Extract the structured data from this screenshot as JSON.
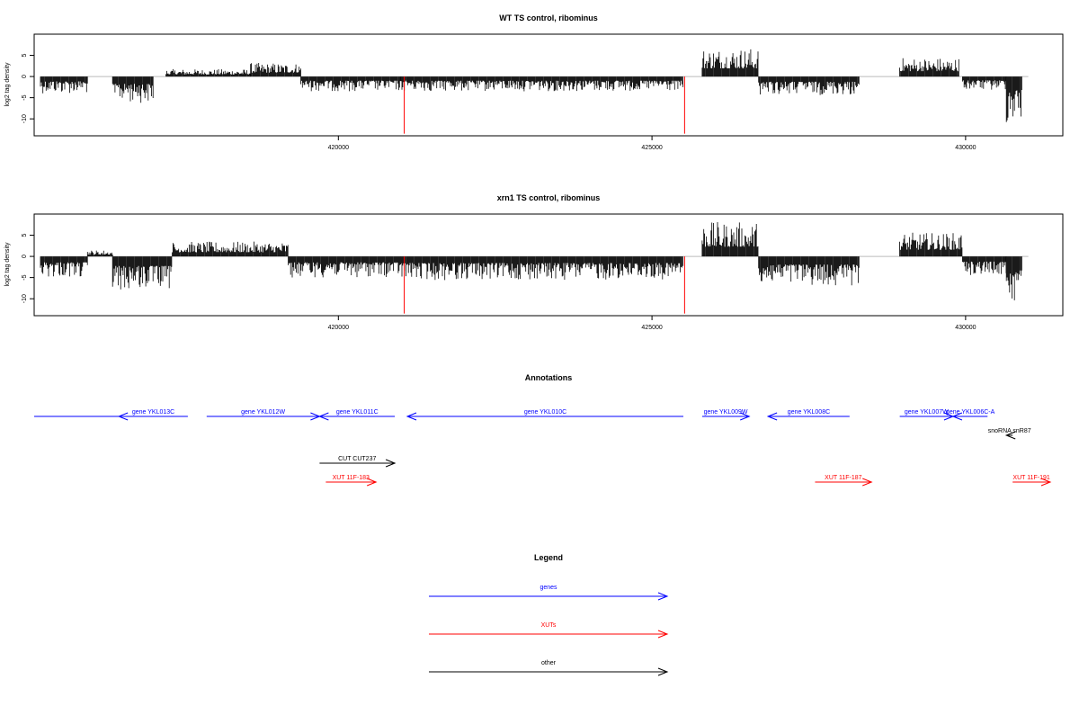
{
  "colors": {
    "genes": "#0000ff",
    "xuts": "#ff0000",
    "other": "#000000",
    "signal": "#000000",
    "marker": "#ff0000",
    "baseline": "#bbbbbb"
  },
  "chart_data": [
    {
      "type": "bar",
      "title": "WT TS control, ribominus",
      "ylabel": "log2 tag density",
      "xlim": [
        415150,
        431550
      ],
      "ylim": [
        -14,
        10
      ],
      "x_ticks": [
        420000,
        425000,
        430000
      ],
      "x_tick_labels": [
        "420000",
        "425000",
        "430000"
      ],
      "y_ticks": [
        -10,
        -5,
        0,
        5
      ],
      "y_tick_labels": [
        "-10",
        "-5",
        "0",
        "5"
      ],
      "marker_positions": [
        421050,
        425520
      ],
      "marker_depth": -13.5,
      "segments": [
        {
          "start": 415250,
          "end": 416000,
          "strand": "-",
          "level": 3.2
        },
        {
          "start": 416400,
          "end": 417050,
          "strand": "-",
          "level": 5.0
        },
        {
          "start": 417250,
          "end": 418600,
          "strand": "+",
          "level": 1.4
        },
        {
          "start": 418600,
          "end": 419400,
          "strand": "+",
          "level": 2.6
        },
        {
          "start": 419400,
          "end": 421000,
          "strand": "-",
          "level": 2.8
        },
        {
          "start": 421000,
          "end": 425500,
          "strand": "-",
          "level": 2.8
        },
        {
          "start": 425800,
          "end": 426700,
          "strand": "+",
          "level": 5.5
        },
        {
          "start": 426700,
          "end": 428300,
          "strand": "-",
          "level": 3.5
        },
        {
          "start": 428950,
          "end": 429900,
          "strand": "+",
          "level": 3.6
        },
        {
          "start": 429950,
          "end": 430650,
          "strand": "-",
          "level": 2.6
        },
        {
          "start": 430650,
          "end": 430900,
          "strand": "-",
          "level": 9.0
        }
      ]
    },
    {
      "type": "bar",
      "title": "xrn1 TS control, ribominus",
      "ylabel": "log2 tag density",
      "xlim": [
        415150,
        431550
      ],
      "ylim": [
        -14,
        10
      ],
      "x_ticks": [
        420000,
        425000,
        430000
      ],
      "x_tick_labels": [
        "420000",
        "425000",
        "430000"
      ],
      "y_ticks": [
        -10,
        -5,
        0,
        5
      ],
      "y_tick_labels": [
        "-10",
        "-5",
        "0",
        "5"
      ],
      "marker_positions": [
        421050,
        425520
      ],
      "marker_depth": -13.5,
      "segments": [
        {
          "start": 415250,
          "end": 416000,
          "strand": "-",
          "level": 4.0
        },
        {
          "start": 416000,
          "end": 416400,
          "strand": "+",
          "level": 1.2
        },
        {
          "start": 416400,
          "end": 417350,
          "strand": "-",
          "level": 6.5
        },
        {
          "start": 417350,
          "end": 419200,
          "strand": "+",
          "level": 2.8
        },
        {
          "start": 419200,
          "end": 421000,
          "strand": "-",
          "level": 4.0
        },
        {
          "start": 421000,
          "end": 425500,
          "strand": "-",
          "level": 4.5
        },
        {
          "start": 425800,
          "end": 426700,
          "strand": "+",
          "level": 6.5
        },
        {
          "start": 426700,
          "end": 428300,
          "strand": "-",
          "level": 5.5
        },
        {
          "start": 428950,
          "end": 429950,
          "strand": "+",
          "level": 4.5
        },
        {
          "start": 429950,
          "end": 430650,
          "strand": "-",
          "level": 3.5
        },
        {
          "start": 430650,
          "end": 430900,
          "strand": "-",
          "level": 9.5
        }
      ]
    }
  ],
  "annotations": {
    "title": "Annotations",
    "features": [
      {
        "label": "",
        "type": "gene",
        "start": 415150,
        "end": 416500,
        "dir": "none",
        "row": 0
      },
      {
        "label": "gene YKL013C",
        "type": "gene",
        "start": 416500,
        "end": 417600,
        "dir": "left",
        "row": 0
      },
      {
        "label": "gene YKL012W",
        "type": "gene",
        "start": 417900,
        "end": 419700,
        "dir": "right",
        "row": 0
      },
      {
        "label": "gene YKL011C",
        "type": "gene",
        "start": 419700,
        "end": 420900,
        "dir": "left",
        "row": 0
      },
      {
        "label": "gene YKL010C",
        "type": "gene",
        "start": 421100,
        "end": 425500,
        "dir": "left",
        "row": 0
      },
      {
        "label": "gene YKL009W",
        "type": "gene",
        "start": 425800,
        "end": 426550,
        "dir": "right",
        "row": 0
      },
      {
        "label": "gene YKL008C",
        "type": "gene",
        "start": 426850,
        "end": 428150,
        "dir": "left",
        "row": 0
      },
      {
        "label": "gene YKL007W",
        "type": "gene",
        "start": 428950,
        "end": 429800,
        "dir": "right",
        "row": 0
      },
      {
        "label": "gene YKL006C-A",
        "type": "gene",
        "start": 429800,
        "end": 430350,
        "dir": "left",
        "row": 0
      },
      {
        "label": "snoRNA snR87",
        "type": "other",
        "start": 430650,
        "end": 430750,
        "dir": "left",
        "row": 1
      },
      {
        "label": "CUT CUT237",
        "type": "other",
        "start": 419700,
        "end": 420900,
        "dir": "right",
        "row": 2
      },
      {
        "label": "XUT 11F-183",
        "type": "xut",
        "start": 419800,
        "end": 420600,
        "dir": "right",
        "row": 3
      },
      {
        "label": "XUT 11F-187",
        "type": "xut",
        "start": 427600,
        "end": 428500,
        "dir": "right",
        "row": 3
      },
      {
        "label": "XUT 11F-191",
        "type": "xut",
        "start": 430750,
        "end": 431550,
        "dir": "right",
        "row": 3
      }
    ]
  },
  "legend": {
    "title": "Legend",
    "items": [
      {
        "label": "genes",
        "type": "gene"
      },
      {
        "label": "XUTs",
        "type": "xut"
      },
      {
        "label": "other",
        "type": "other"
      }
    ]
  }
}
